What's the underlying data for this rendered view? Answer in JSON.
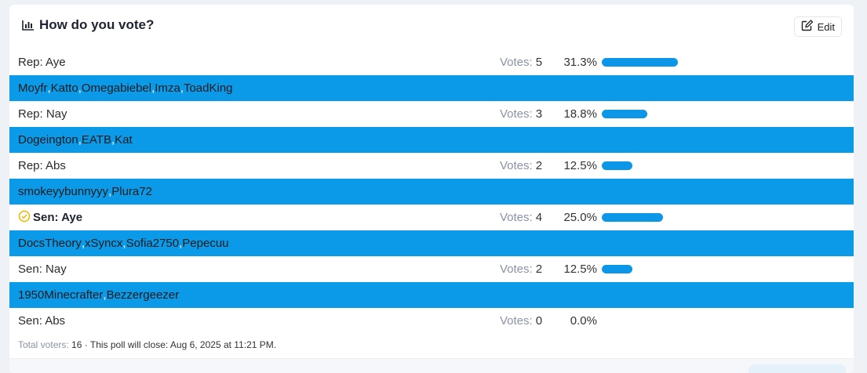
{
  "poll": {
    "title": "How do you vote?",
    "edit_label": "Edit",
    "votes_label": "Votes:",
    "options": [
      {
        "label": "Rep: Aye",
        "votes": "5",
        "percent": "31.3%",
        "fraction": 0.313,
        "selected": false,
        "voters": [
          "Moyfr",
          "Katto",
          "Omegabiebel",
          "Imza",
          "ToadKing"
        ]
      },
      {
        "label": "Rep: Nay",
        "votes": "3",
        "percent": "18.8%",
        "fraction": 0.188,
        "selected": false,
        "voters": [
          "Dogeington",
          "EATB",
          "Kat"
        ]
      },
      {
        "label": "Rep: Abs",
        "votes": "2",
        "percent": "12.5%",
        "fraction": 0.125,
        "selected": false,
        "voters": [
          "smokeyybunnyyy",
          "Plura72"
        ]
      },
      {
        "label": "Sen: Aye",
        "votes": "4",
        "percent": "25.0%",
        "fraction": 0.25,
        "selected": true,
        "voters": [
          "DocsTheory",
          "xSyncx",
          "Sofia2750",
          "Pepecuu"
        ]
      },
      {
        "label": "Sen: Nay",
        "votes": "2",
        "percent": "12.5%",
        "fraction": 0.125,
        "selected": false,
        "voters": [
          "1950Minecrafter",
          "Bezzergeezer"
        ]
      },
      {
        "label": "Sen: Abs",
        "votes": "0",
        "percent": "0.0%",
        "fraction": 0.0,
        "selected": false,
        "voters": []
      }
    ],
    "footer": {
      "voters_label": "Total voters:",
      "voters_count": "16",
      "close_text": "· This poll will close: Aug 6, 2025 at 11:21 PM."
    },
    "colors": {
      "accent": "#0b96e8",
      "voters_bg": "#0b9ae8",
      "selected_check": "#f0b400"
    }
  }
}
